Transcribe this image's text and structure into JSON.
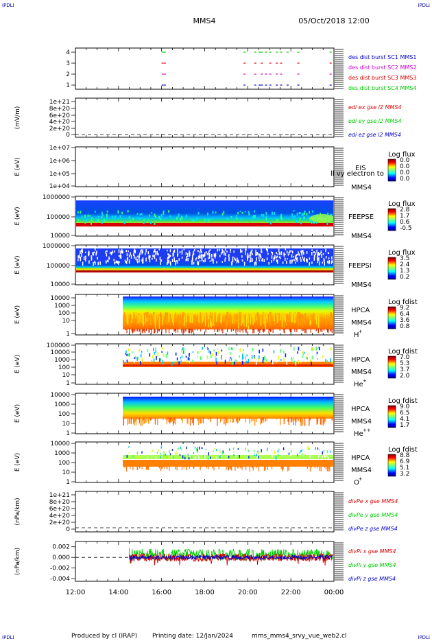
{
  "corner_labels": {
    "top_left": "IPDLI",
    "top_right": "IPDLI",
    "bottom_left": "IPDLI",
    "bottom_right": "IPDLI"
  },
  "header": {
    "spacecraft": "MMS4",
    "datetime": "05/Oct/2018 12:00"
  },
  "footer": {
    "produced_by": "Produced by cl (IRAP)",
    "printing_date": "Printing date: 12/Jan/2024",
    "script_name": "mms_mms4_srvy_vue_web2.cl"
  },
  "x_axis": {
    "ticks": [
      "12:00",
      "14:00",
      "16:00",
      "18:00",
      "20:00",
      "22:00",
      "00:00"
    ]
  },
  "colors": {
    "mms1": "#0000cc",
    "mms2": "#cc00cc",
    "mms3": "#dd0000",
    "mms4": "#00cc00",
    "x": "#dd0000",
    "y": "#00cc00",
    "z": "#0000cc"
  },
  "panels": {
    "burst": {
      "yticks": [
        "4",
        "3",
        "2",
        "1"
      ],
      "legend": [
        "des dist burst SC1 MMS1",
        "des dist burst SC2 MMS2",
        "des dist burst SC3 MMS3",
        "des dist burst SC4 MMS4"
      ]
    },
    "edi": {
      "ylabel": "(mV/m)",
      "yticks": [
        "1e+21",
        "8e+20",
        "6e+20",
        "4e+20",
        "2e+20",
        "0"
      ],
      "legend": [
        "edi ex gse l2 MMS4",
        "edi ey gse l2 MMS4",
        "edi ez gse l2 MMS4"
      ]
    },
    "eis": {
      "ylabel": "E (eV)",
      "yticks": [
        "1e+07",
        "1e+06",
        "1e+05",
        "1e+04"
      ],
      "inst": "EIS",
      "spacecraft": "MMS4",
      "overlay": "ll vy electron to",
      "cb_title": "Log flux",
      "cb_ticks": [
        "0.0",
        "0.0",
        "0.0",
        "0.0"
      ]
    },
    "feepse": {
      "ylabel": "E (eV)",
      "yticks": [
        "1000000",
        "100000",
        "10000"
      ],
      "inst": "FEEPSE",
      "spacecraft": "MMS4",
      "cb_title": "Log flux",
      "cb_ticks": [
        "2.8",
        "1.7",
        "0.6",
        "-0.5"
      ]
    },
    "feepsi": {
      "ylabel": "E (eV)",
      "yticks": [
        "1000000",
        "100000",
        "10000"
      ],
      "inst": "FEEPSI",
      "spacecraft": "MMS4",
      "cb_title": "Log flux",
      "cb_ticks": [
        "3.5",
        "2.4",
        "1.3",
        "0.2"
      ]
    },
    "hpca_h": {
      "ylabel": "E (eV)",
      "yticks": [
        "10000",
        "1000",
        "100",
        "10",
        "1"
      ],
      "inst": "HPCA",
      "spacecraft": "MMS4",
      "species": "H",
      "charge": "+",
      "cb_title": "Log fdist",
      "cb_ticks": [
        "9.2",
        "6.4",
        "3.6",
        "0.8"
      ]
    },
    "hpca_he1": {
      "ylabel": "E (eV)",
      "yticks": [
        "100000",
        "10000",
        "1000",
        "100",
        "10",
        "1"
      ],
      "inst": "HPCA",
      "spacecraft": "MMS4",
      "species": "He",
      "charge": "+",
      "cb_title": "Log fdist",
      "cb_ticks": [
        "7.0",
        "5.3",
        "3.7",
        "2.0"
      ]
    },
    "hpca_he2": {
      "ylabel": "E (eV)",
      "yticks": [
        "10000",
        "1000",
        "100",
        "10",
        "1"
      ],
      "inst": "HPCA",
      "spacecraft": "MMS4",
      "species": "He",
      "charge": "++",
      "cb_title": "Log fdist",
      "cb_ticks": [
        "9.0",
        "6.5",
        "4.1",
        "1.7"
      ]
    },
    "hpca_o": {
      "ylabel": "E (eV)",
      "yticks": [
        "10000",
        "1000",
        "100",
        "10",
        "1"
      ],
      "inst": "HPCA",
      "spacecraft": "MMS4",
      "species": "O",
      "charge": "+",
      "cb_title": "Log fdist",
      "cb_ticks": [
        "8.8",
        "6.9",
        "5.1",
        "3.2"
      ]
    },
    "divpe": {
      "ylabel": "(nPa/km)",
      "yticks": [
        "1e+21",
        "8e+20",
        "6e+20",
        "4e+20",
        "2e+20",
        "0"
      ],
      "legend": [
        "divPe x gse MMS4",
        "divPe y gse MMS4",
        "divPe z gse MMS4"
      ]
    },
    "divpi": {
      "ylabel": "(nPa/km)",
      "yticks": [
        "0.002",
        "0.000",
        "-0.002",
        "-0.004"
      ],
      "legend": [
        "divPi x gse MMS4",
        "divPi y gse MMS4",
        "divPi z gse MMS4"
      ]
    }
  },
  "chart_data": {
    "type": "heatmap",
    "x_range": [
      "12:00",
      "00:00"
    ],
    "burst_intervals_hours": [
      {
        "name": "MMS4",
        "level": 4,
        "times": [
          16.0,
          16.1,
          19.8,
          20.3,
          20.5,
          20.6,
          20.8,
          21.0,
          21.3,
          21.5,
          21.8,
          22.3,
          23.8
        ]
      },
      {
        "name": "MMS3",
        "level": 3,
        "times": [
          16.0,
          16.1,
          19.8,
          20.3,
          20.6,
          21.0,
          21.3,
          21.5,
          22.3,
          23.8
        ]
      },
      {
        "name": "MMS2",
        "level": 2,
        "times": [
          16.0,
          16.1,
          19.8,
          20.3,
          20.6,
          20.8,
          21.0,
          21.3,
          21.5,
          22.3,
          23.8
        ]
      },
      {
        "name": "MMS1",
        "level": 1,
        "times": [
          16.0,
          16.1,
          19.8,
          20.3,
          20.5,
          20.6,
          20.8,
          21.0,
          21.3,
          21.5,
          21.8,
          22.3,
          23.8
        ]
      }
    ],
    "hpca_data_start_hour": 14.2,
    "divpi_series": [
      {
        "name": "divPi x gse MMS4",
        "start_hour": 14.5,
        "range": [
          -0.0015,
          0.0012
        ]
      },
      {
        "name": "divPi y gse MMS4",
        "start_hour": 14.5,
        "range": [
          -0.0012,
          0.0028
        ]
      },
      {
        "name": "divPi z gse MMS4",
        "start_hour": 14.5,
        "range": [
          -0.0006,
          0.0008
        ]
      }
    ],
    "divpi_ylim": [
      -0.0045,
      0.003
    ]
  }
}
